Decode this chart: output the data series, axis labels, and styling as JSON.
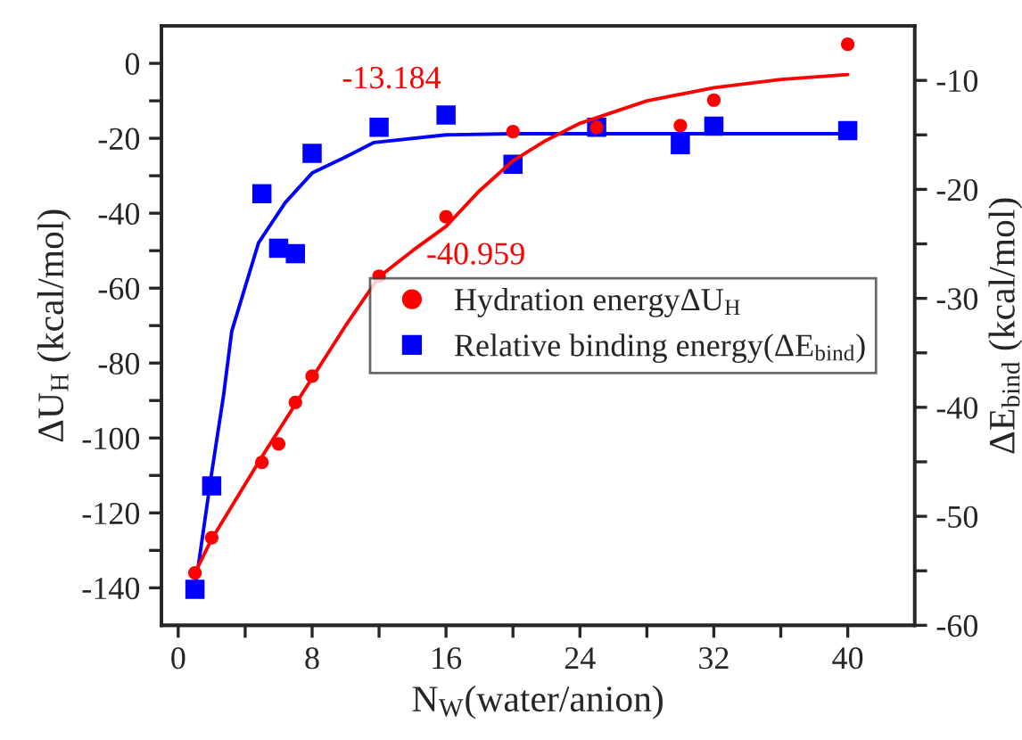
{
  "chart_data": {
    "type": "scatter",
    "xlabel": "N$_{W}$(water/anion)",
    "ylabel": "ΔU$_{H}$ (kcal/mol)",
    "y2label": "ΔE$_{bind}$ (kcal/mol)",
    "xlim": [
      -1,
      44
    ],
    "xticks": [
      0,
      {
        "value": 4,
        "label": null
      },
      8,
      {
        "value": 12,
        "label": null
      },
      16,
      {
        "value": 20,
        "label": null
      },
      24,
      {
        "value": 28,
        "label": null
      },
      32,
      {
        "value": 36,
        "label": null
      },
      40
    ],
    "ylim": [
      -150,
      10
    ],
    "yticks": [
      -140,
      {
        "value": -130,
        "label": null
      },
      -120,
      {
        "value": -110,
        "label": null
      },
      -100,
      {
        "value": -90,
        "label": null
      },
      -80,
      {
        "value": -70,
        "label": null
      },
      -60,
      {
        "value": -50,
        "label": null
      },
      -40,
      {
        "value": -30,
        "label": null
      },
      -20,
      {
        "value": -10,
        "label": null
      },
      0
    ],
    "y2lim": [
      -60,
      -5
    ],
    "y2ticks": [
      -60,
      {
        "value": -55,
        "label": null
      },
      -50,
      {
        "value": -45,
        "label": null
      },
      -40,
      {
        "value": -35,
        "label": null
      },
      -30,
      {
        "value": -25,
        "label": null
      },
      -20,
      {
        "value": -15,
        "label": null
      },
      -10
    ],
    "legend": "center right",
    "grid": false,
    "series": [
      {
        "name": "Hydration energyΔU$_{H}$",
        "color": "#ff0000",
        "marker": "circle",
        "x": [
          1,
          2,
          5,
          6,
          7,
          8,
          12,
          16,
          20,
          25,
          30,
          32,
          40
        ],
        "values": [
          -136,
          -126.6,
          -106.5,
          -101.6,
          -90.5,
          -83.5,
          -56.8,
          -40.959,
          -18.2,
          -17.1,
          -16.6,
          -9.8,
          5.1
        ],
        "value_labels": [
          null,
          null,
          null,
          null,
          null,
          null,
          null,
          "-40.959",
          null,
          null,
          null,
          null,
          null
        ]
      },
      {
        "name": "Relative binding energy(ΔE$_{bind}$)",
        "color": "#0000ff",
        "marker": "square",
        "axis": "y2",
        "x": [
          1,
          2,
          5,
          6,
          7,
          8,
          12,
          16,
          20,
          25,
          30,
          32,
          40
        ],
        "values": [
          -56.7,
          -47.2,
          -20.4,
          -25.4,
          -25.9,
          -16.7,
          -14.3,
          -13.184,
          -17.7,
          -14.3,
          -15.9,
          -14.2,
          -14.6
        ],
        "value_labels": [
          null,
          null,
          null,
          null,
          null,
          null,
          null,
          "-13.184",
          null,
          null,
          null,
          null,
          null
        ]
      },
      {
        "type": "line",
        "color": "#ff0000",
        "marker": "none",
        "x": [
          1,
          2,
          5,
          8,
          10,
          12,
          14,
          16,
          18,
          20,
          22,
          24,
          28,
          32,
          36,
          40
        ],
        "values": [
          -136,
          -127,
          -105,
          -84,
          -70,
          -57,
          -50,
          -43.5,
          -34,
          -26,
          -20.5,
          -16,
          -10,
          -6.5,
          -4.3,
          -3
        ]
      },
      {
        "type": "line",
        "color": "#0000ff",
        "marker": "none",
        "axis": "y2",
        "x": [
          1,
          2,
          2.7,
          3.2,
          4.8,
          6.4,
          8,
          9.9,
          11.7,
          16,
          20,
          40
        ],
        "values": [
          -56.7,
          -46,
          -39,
          -33,
          -24.9,
          -21.2,
          -18.5,
          -17.1,
          -15.7,
          -15,
          -14.9,
          -14.9
        ]
      }
    ]
  }
}
